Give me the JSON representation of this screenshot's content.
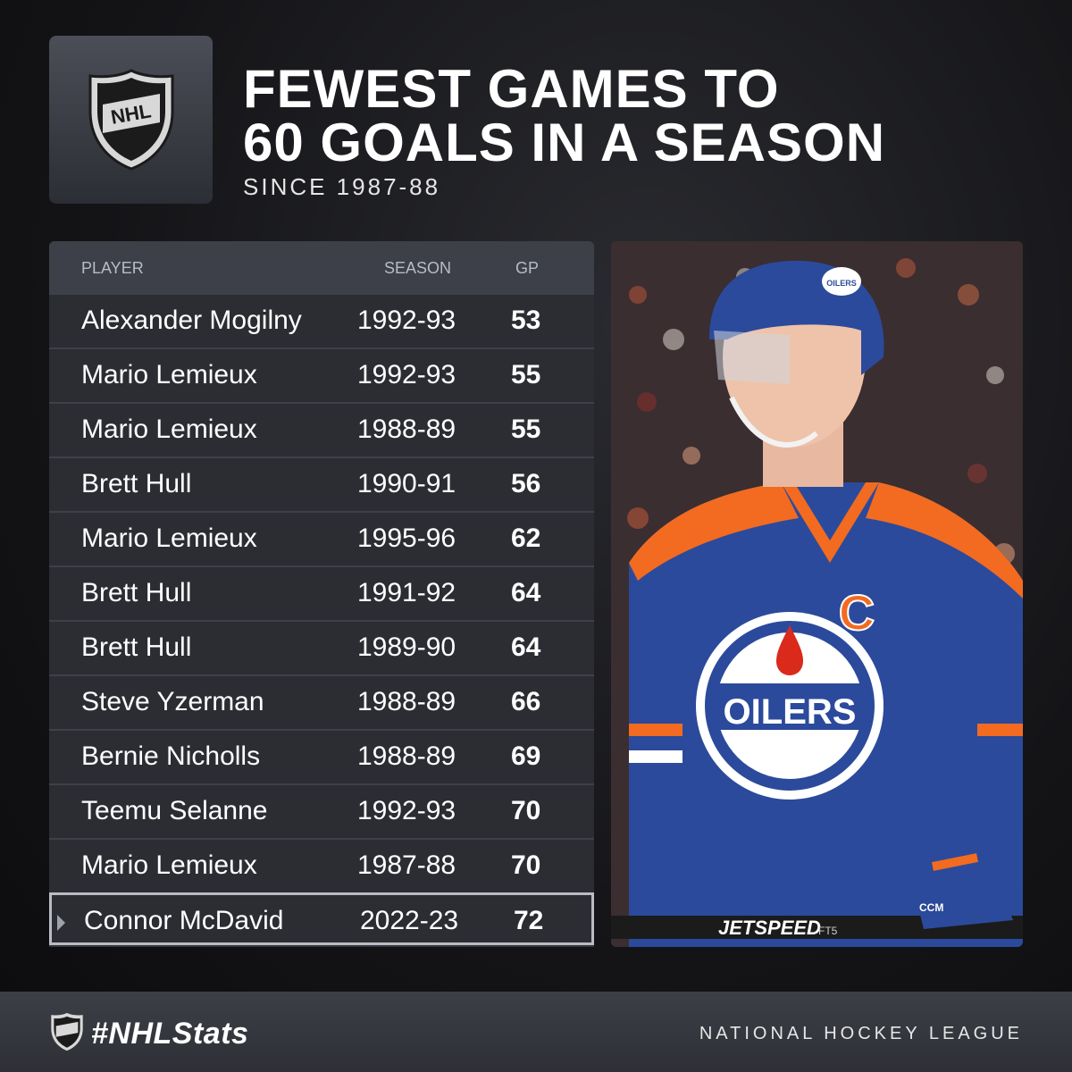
{
  "header": {
    "title_line1": "FEWEST GAMES TO",
    "title_line2": "60 GOALS IN A SEASON",
    "subtitle": "SINCE 1987-88",
    "logo_text": "NHL"
  },
  "table": {
    "columns": [
      "PLAYER",
      "SEASON",
      "GP"
    ],
    "rows": [
      {
        "player": "Alexander Mogilny",
        "season": "1992-93",
        "gp": "53"
      },
      {
        "player": "Mario Lemieux",
        "season": "1992-93",
        "gp": "55"
      },
      {
        "player": "Mario Lemieux",
        "season": "1988-89",
        "gp": "55"
      },
      {
        "player": "Brett Hull",
        "season": "1990-91",
        "gp": "56"
      },
      {
        "player": "Mario Lemieux",
        "season": "1995-96",
        "gp": "62"
      },
      {
        "player": "Brett Hull",
        "season": "1991-92",
        "gp": "64"
      },
      {
        "player": "Brett Hull",
        "season": "1989-90",
        "gp": "64"
      },
      {
        "player": "Steve Yzerman",
        "season": "1988-89",
        "gp": "66"
      },
      {
        "player": "Bernie Nicholls",
        "season": "1988-89",
        "gp": "69"
      },
      {
        "player": "Teemu Selanne",
        "season": "1992-93",
        "gp": "70"
      },
      {
        "player": "Mario Lemieux",
        "season": "1987-88",
        "gp": "70"
      },
      {
        "player": "Connor McDavid",
        "season": "2022-23",
        "gp": "72"
      }
    ]
  },
  "photo": {
    "jersey_text": "OILERS",
    "captain_letter": "C",
    "helmet_text": "OILERS",
    "stick_text": "JETSPEED",
    "stick_subtext": "FT5",
    "glove_text": "CCM",
    "colors": {
      "blue": "#2b4a9b",
      "orange": "#f26b21"
    }
  },
  "footer": {
    "hashtag": "#NHLStats",
    "league": "NATIONAL HOCKEY LEAGUE"
  },
  "colors": {
    "background": "#141417",
    "table_row": "#2b2d33",
    "header_row": "#3d4048"
  }
}
